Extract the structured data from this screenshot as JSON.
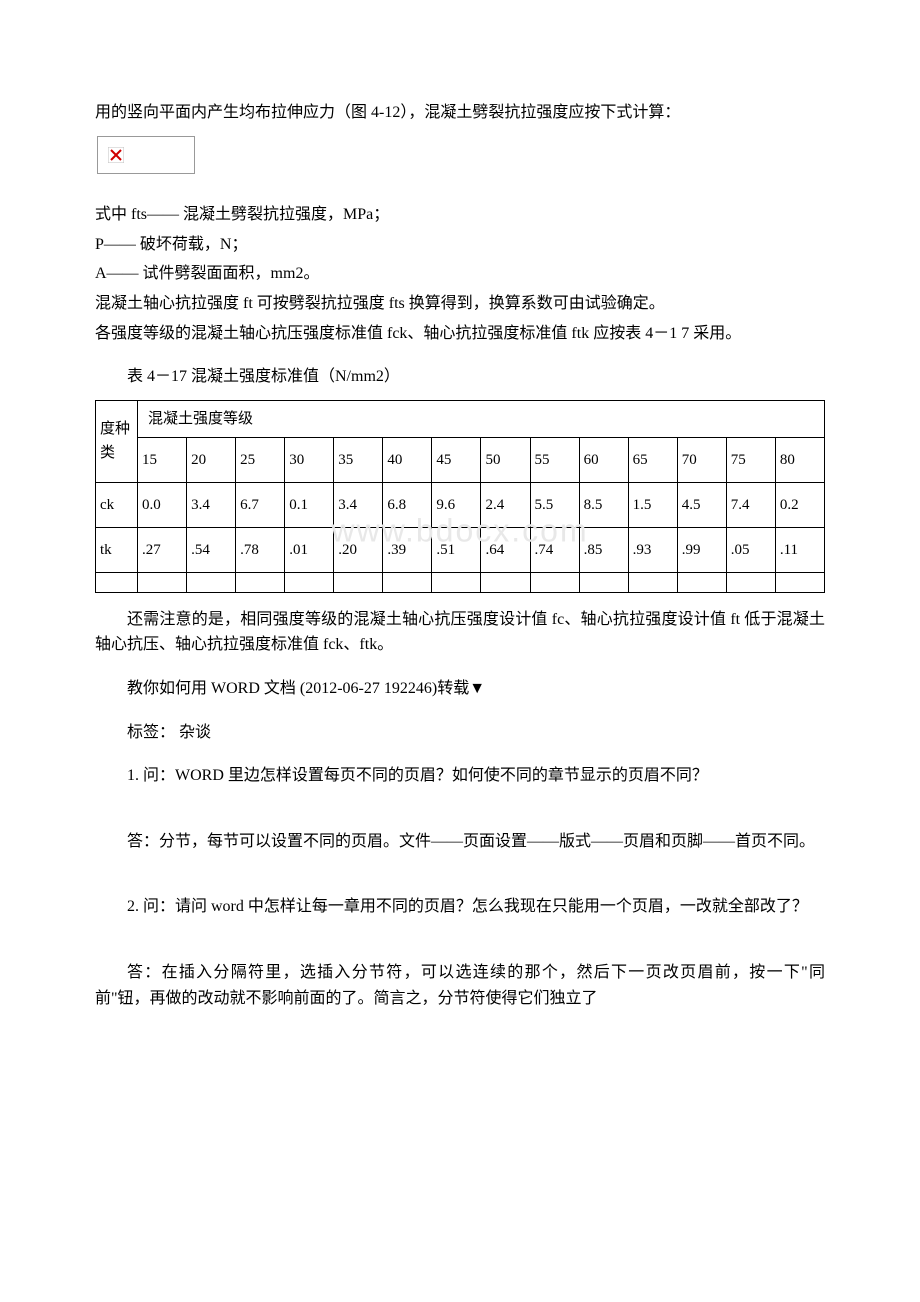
{
  "intro": {
    "line1": "用的竖向平面内产生均布拉伸应力（图 4-12），混凝土劈裂抗拉强度应按下式计算：",
    "formula_desc": "式中 fts—— 混凝土劈裂抗拉强度，MPa；",
    "line_p": "P—— 破坏荷载，N；",
    "line_a": "A—— 试件劈裂面面积，mm2。",
    "line_ft": "混凝土轴心抗拉强度 ft 可按劈裂抗拉强度 fts 换算得到，换算系数可由试验确定。",
    "line_grades": "各强度等级的混凝土轴心抗压强度标准值 fck、轴心抗拉强度标准值 ftk 应按表 4－1 7 采用。"
  },
  "table": {
    "caption": "表 4－17 混凝土强度标准值（N/mm2）",
    "row_header_label": "度种类",
    "grade_header": "混凝土强度等级",
    "grade_cols": [
      "15",
      "20",
      "25",
      "30",
      "35",
      "40",
      "45",
      "50",
      "55",
      "60",
      "65",
      "70",
      "75",
      "80"
    ],
    "rows": [
      {
        "label": "ck",
        "values": [
          "0.0",
          "3.4",
          "6.7",
          "0.1",
          "3.4",
          "6.8",
          "9.6",
          "2.4",
          "5.5",
          "8.5",
          "1.5",
          "4.5",
          "7.4",
          "0.2"
        ]
      },
      {
        "label": "tk",
        "values": [
          ".27",
          ".54",
          ".78",
          ".01",
          ".20",
          ".39",
          ".51",
          ".64",
          ".74",
          ".85",
          ".93",
          ".99",
          ".05",
          ".11"
        ]
      }
    ]
  },
  "watermark": "www.bdocx.com",
  "after_table": "还需注意的是，相同强度等级的混凝土轴心抗压强度设计值 fc、轴心抗拉强度设计值 ft 低于混凝土轴心抗压、轴心抗拉强度标准值 fck、ftk。",
  "article": {
    "title": "教你如何用 WORD 文档 (2012-06-27 192246)转载▼",
    "tags": "标签： 杂谈",
    "q1": "1. 问：WORD 里边怎样设置每页不同的页眉？如何使不同的章节显示的页眉不同？",
    "a1": "答：分节，每节可以设置不同的页眉。文件——页面设置——版式——页眉和页脚——首页不同。",
    "q2": "2. 问：请问 word 中怎样让每一章用不同的页眉？怎么我现在只能用一个页眉，一改就全部改了？",
    "a2": "答：在插入分隔符里，选插入分节符，可以选连续的那个，然后下一页改页眉前，按一下\"同前\"钮，再做的改动就不影响前面的了。简言之，分节符使得它们独立了"
  },
  "colors": {
    "text": "#000000",
    "background": "#ffffff",
    "border": "#000000",
    "watermark": "#e8e8e8",
    "broken_img_border": "#999999",
    "broken_img_x": "#d00000"
  }
}
